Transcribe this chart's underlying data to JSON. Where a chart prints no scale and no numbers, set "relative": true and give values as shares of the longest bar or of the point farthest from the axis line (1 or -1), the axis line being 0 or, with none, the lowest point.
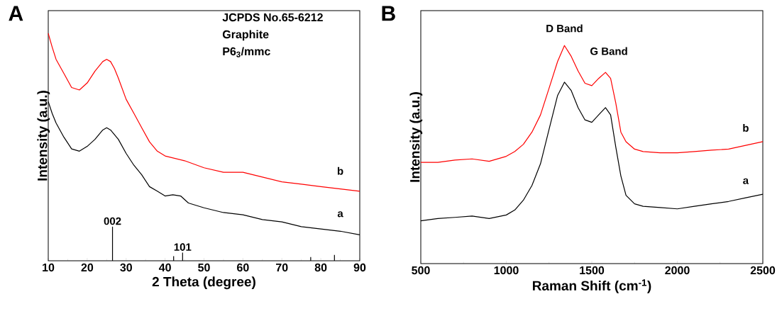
{
  "chart_data": [
    {
      "type": "line",
      "title": "A",
      "xlabel": "2 Theta (degree)",
      "ylabel": "Intensity (a.u.)",
      "relative": true,
      "xlim": [
        10,
        90
      ],
      "xticks": [
        10,
        20,
        30,
        40,
        50,
        60,
        70,
        80,
        90
      ],
      "annotations": [
        "JCPDS No.65-6212",
        "Graphite",
        "P6$_{3}$/mmc",
        {
          "text": "002",
          "x": 26.5,
          "y": 0.15
        },
        {
          "text": "101",
          "x": 44.5,
          "y": 0.036
        }
      ],
      "series": [
        {
          "name": "b",
          "color": "#ff0000",
          "x": [
            10,
            11,
            12,
            14,
            16,
            18,
            20,
            22,
            24,
            25,
            26,
            27,
            28,
            30,
            32,
            34,
            36,
            38,
            40,
            45,
            50,
            55,
            60,
            65,
            70,
            75,
            80,
            85,
            90
          ],
          "values": [
            1.0,
            0.94,
            0.886,
            0.824,
            0.762,
            0.751,
            0.782,
            0.834,
            0.876,
            0.886,
            0.876,
            0.845,
            0.803,
            0.71,
            0.648,
            0.585,
            0.523,
            0.482,
            0.461,
            0.44,
            0.409,
            0.389,
            0.389,
            0.368,
            0.347,
            0.337,
            0.326,
            0.316,
            0.306
          ]
        },
        {
          "name": "a",
          "color": "#000000",
          "x": [
            10,
            11,
            12,
            14,
            16,
            18,
            20,
            22,
            24,
            25,
            26,
            28,
            30,
            32,
            34,
            36,
            38,
            40,
            42,
            44,
            46,
            50,
            55,
            60,
            65,
            70,
            75,
            80,
            85,
            90
          ],
          "values": [
            0.7,
            0.648,
            0.606,
            0.544,
            0.492,
            0.482,
            0.503,
            0.534,
            0.575,
            0.585,
            0.575,
            0.534,
            0.472,
            0.42,
            0.378,
            0.326,
            0.306,
            0.285,
            0.29,
            0.285,
            0.254,
            0.233,
            0.212,
            0.202,
            0.181,
            0.171,
            0.15,
            0.14,
            0.13,
            0.114
          ]
        },
        {
          "type": "bar",
          "color": "#000000",
          "x": [
            26.5,
            42.2,
            44.5,
            77.4,
            83.5
          ],
          "values": [
            0.15,
            0.02,
            0.036,
            0.016,
            0.026
          ]
        }
      ]
    },
    {
      "type": "line",
      "title": "B",
      "xlabel": "Raman Shift (cm$^{-1}$)",
      "ylabel": "Intensity (a.u.)",
      "relative": true,
      "xlim": [
        500,
        2500
      ],
      "xticks": [
        500,
        1000,
        1500,
        2000,
        2500
      ],
      "annotations": [
        "D Band",
        "G Band"
      ],
      "series": [
        {
          "name": "b",
          "color": "#ff0000",
          "x": [
            500,
            600,
            700,
            800,
            900,
            1000,
            1050,
            1100,
            1150,
            1200,
            1250,
            1300,
            1340,
            1380,
            1420,
            1460,
            1500,
            1540,
            1580,
            1610,
            1640,
            1670,
            1700,
            1750,
            1800,
            1900,
            2000,
            2100,
            2200,
            2300,
            2400,
            2500
          ],
          "values": [
            0.464,
            0.464,
            0.475,
            0.48,
            0.469,
            0.492,
            0.514,
            0.547,
            0.603,
            0.682,
            0.804,
            0.927,
            1.0,
            0.95,
            0.883,
            0.827,
            0.816,
            0.849,
            0.877,
            0.849,
            0.737,
            0.603,
            0.559,
            0.525,
            0.514,
            0.508,
            0.508,
            0.514,
            0.52,
            0.525,
            0.542,
            0.559
          ]
        },
        {
          "name": "a",
          "color": "#000000",
          "x": [
            500,
            600,
            700,
            800,
            900,
            1000,
            1050,
            1100,
            1150,
            1200,
            1250,
            1300,
            1340,
            1380,
            1420,
            1460,
            1500,
            1540,
            1580,
            1610,
            1640,
            1670,
            1700,
            1750,
            1800,
            1900,
            2000,
            2100,
            2200,
            2300,
            2400,
            2500
          ],
          "values": [
            0.196,
            0.207,
            0.212,
            0.218,
            0.207,
            0.223,
            0.246,
            0.291,
            0.358,
            0.458,
            0.615,
            0.771,
            0.832,
            0.793,
            0.715,
            0.659,
            0.648,
            0.682,
            0.715,
            0.682,
            0.536,
            0.402,
            0.313,
            0.274,
            0.263,
            0.257,
            0.251,
            0.263,
            0.274,
            0.285,
            0.302,
            0.318
          ]
        }
      ]
    }
  ]
}
